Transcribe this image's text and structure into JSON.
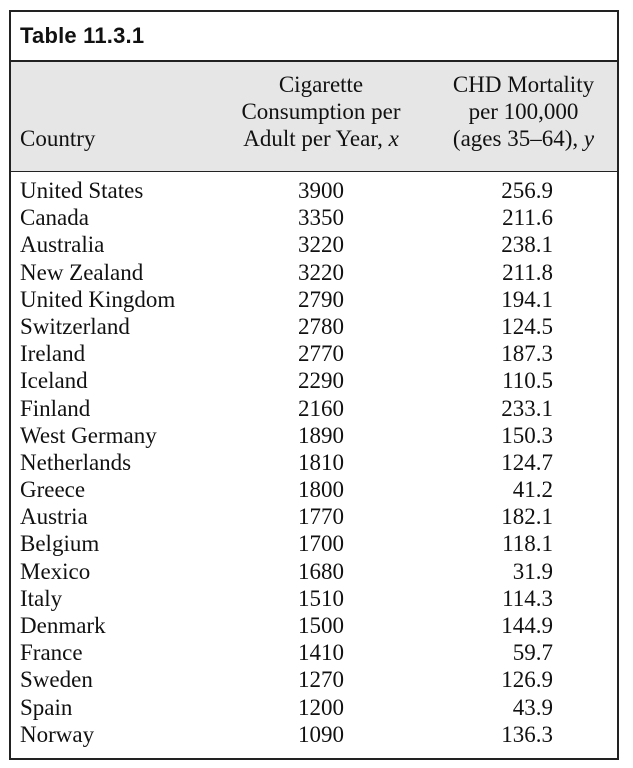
{
  "table": {
    "title": "Table 11.3.1",
    "headers": {
      "country": "Country",
      "x_lines": [
        "Cigarette",
        "Consumption per",
        "Adult per Year, "
      ],
      "x_var": "x",
      "y_lines": [
        "CHD Mortality",
        "per 100,000",
        "(ages 35–64), "
      ],
      "y_var": "y"
    },
    "rows": [
      {
        "country": "United States",
        "x": "3900",
        "y": "256.9"
      },
      {
        "country": "Canada",
        "x": "3350",
        "y": "211.6"
      },
      {
        "country": "Australia",
        "x": "3220",
        "y": "238.1"
      },
      {
        "country": "New Zealand",
        "x": "3220",
        "y": "211.8"
      },
      {
        "country": "United Kingdom",
        "x": "2790",
        "y": "194.1"
      },
      {
        "country": "Switzerland",
        "x": "2780",
        "y": "124.5"
      },
      {
        "country": "Ireland",
        "x": "2770",
        "y": "187.3"
      },
      {
        "country": "Iceland",
        "x": "2290",
        "y": "110.5"
      },
      {
        "country": "Finland",
        "x": "2160",
        "y": "233.1"
      },
      {
        "country": "West Germany",
        "x": "1890",
        "y": "150.3"
      },
      {
        "country": "Netherlands",
        "x": "1810",
        "y": "124.7"
      },
      {
        "country": "Greece",
        "x": "1800",
        "y": "41.2"
      },
      {
        "country": "Austria",
        "x": "1770",
        "y": "182.1"
      },
      {
        "country": "Belgium",
        "x": "1700",
        "y": "118.1"
      },
      {
        "country": "Mexico",
        "x": "1680",
        "y": "31.9"
      },
      {
        "country": "Italy",
        "x": "1510",
        "y": "114.3"
      },
      {
        "country": "Denmark",
        "x": "1500",
        "y": "144.9"
      },
      {
        "country": "France",
        "x": "1410",
        "y": "59.7"
      },
      {
        "country": "Sweden",
        "x": "1270",
        "y": "126.9"
      },
      {
        "country": "Spain",
        "x": "1200",
        "y": "43.9"
      },
      {
        "country": "Norway",
        "x": "1090",
        "y": "136.3"
      }
    ]
  }
}
